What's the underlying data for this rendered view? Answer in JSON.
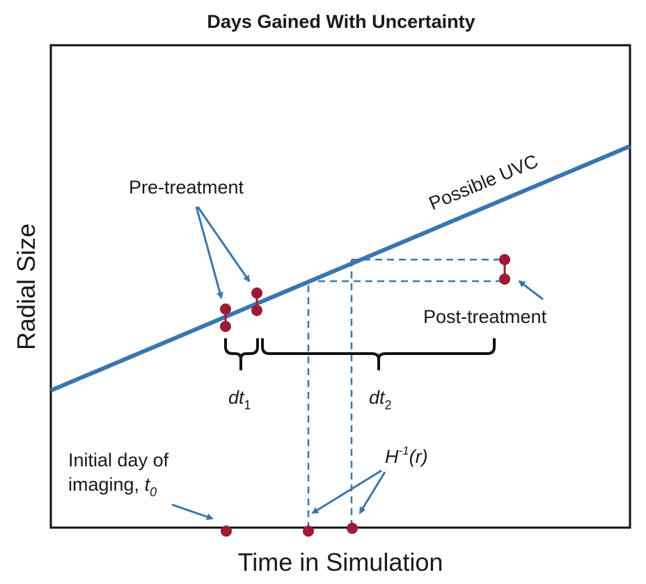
{
  "title": "Days Gained With Uncertainty",
  "axes": {
    "xlabel": "Time in Simulation",
    "ylabel": "Radial Size"
  },
  "curve_label": "Possible UVC",
  "labels": {
    "pre_treatment": "Pre-treatment",
    "post_treatment": "Post-treatment",
    "initial_day_line1": "Initial day of",
    "initial_day_line2": "imaging, ",
    "t0_base": "t",
    "t0_sub": "0",
    "dt1_base": "dt",
    "dt1_sub": "1",
    "dt2_base": "dt",
    "dt2_sub": "2",
    "h_inverse_base": "H",
    "h_inverse_sup": "-1",
    "h_inverse_arg": "(r)"
  },
  "colors": {
    "curve": "#3a76ae",
    "point": "#9c1b36",
    "dashed": "#3a76ae",
    "brace": "#111111",
    "arrow": "#3a76ae",
    "frame": "#111111"
  }
}
